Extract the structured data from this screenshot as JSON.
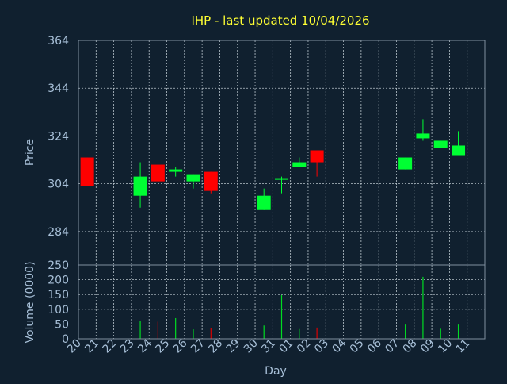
{
  "colors": {
    "background": "#10202f",
    "plot_border": "#7f8f9f",
    "grid": "#b8c4cc",
    "axis_text": "#a8c0d8",
    "title": "#ffff33",
    "up": "#00ff33",
    "down": "#ff0000",
    "volume_up": "#00dd22",
    "volume_down": "#dd0000"
  },
  "chart_data": {
    "type": "candlestick",
    "title": "IHP - last updated 10/04/2026",
    "xlabel": "Day",
    "price_panel": {
      "ylabel": "Price",
      "ylim": [
        270,
        364
      ],
      "yticks": [
        364,
        344,
        324,
        304,
        284
      ],
      "grid": true
    },
    "volume_panel": {
      "ylabel": "Volume (0000)",
      "ylim": [
        0,
        250
      ],
      "yticks": [
        250,
        200,
        150,
        100,
        50,
        0
      ],
      "grid": true
    },
    "categories": [
      "20",
      "21",
      "22",
      "23",
      "24",
      "25",
      "26",
      "27",
      "28",
      "29",
      "30",
      "31",
      "01",
      "02",
      "03",
      "04",
      "05",
      "06",
      "07",
      "08",
      "09",
      "10",
      "11"
    ],
    "candles": [
      {
        "day": "20",
        "open": 315,
        "high": 315,
        "low": 303,
        "close": 303
      },
      {
        "day": "23",
        "open": 299,
        "high": 313,
        "low": 294,
        "close": 307
      },
      {
        "day": "24",
        "open": 312,
        "high": 312,
        "low": 305,
        "close": 305
      },
      {
        "day": "25",
        "open": 309,
        "high": 311,
        "low": 307,
        "close": 310
      },
      {
        "day": "26",
        "open": 305,
        "high": 308,
        "low": 302,
        "close": 308
      },
      {
        "day": "27",
        "open": 309,
        "high": 309,
        "low": 300,
        "close": 301
      },
      {
        "day": "30",
        "open": 293,
        "high": 302,
        "low": 293,
        "close": 299
      },
      {
        "day": "31",
        "open": 306,
        "high": 307,
        "low": 300,
        "close": 306
      },
      {
        "day": "01",
        "open": 311,
        "high": 315,
        "low": 311,
        "close": 313
      },
      {
        "day": "02",
        "open": 318,
        "high": 318,
        "low": 307,
        "close": 313
      },
      {
        "day": "07",
        "open": 310,
        "high": 315,
        "low": 310,
        "close": 315
      },
      {
        "day": "08",
        "open": 323,
        "high": 331,
        "low": 322,
        "close": 325
      },
      {
        "day": "09",
        "open": 319,
        "high": 322,
        "low": 319,
        "close": 322
      },
      {
        "day": "10",
        "open": 316,
        "high": 326,
        "low": 316,
        "close": 320
      }
    ],
    "volume": [
      {
        "day": "20",
        "value": 0
      },
      {
        "day": "23",
        "value": 60
      },
      {
        "day": "24",
        "value": 58
      },
      {
        "day": "25",
        "value": 70
      },
      {
        "day": "26",
        "value": 32
      },
      {
        "day": "27",
        "value": 35
      },
      {
        "day": "30",
        "value": 45
      },
      {
        "day": "31",
        "value": 148
      },
      {
        "day": "01",
        "value": 33
      },
      {
        "day": "02",
        "value": 38
      },
      {
        "day": "07",
        "value": 48
      },
      {
        "day": "08",
        "value": 210
      },
      {
        "day": "09",
        "value": 34
      },
      {
        "day": "10",
        "value": 48
      }
    ]
  }
}
